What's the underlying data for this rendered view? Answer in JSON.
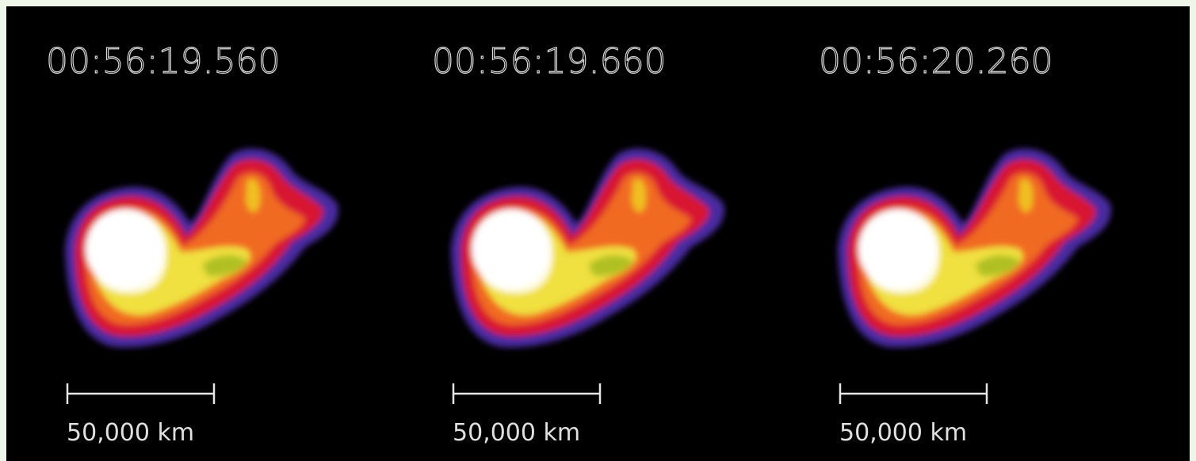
{
  "panels": [
    {
      "time": "00:56:19.560",
      "scale": "50,000 km"
    },
    {
      "time": "00:56:19.660",
      "scale": "50,000 km"
    },
    {
      "time": "00:56:20.260",
      "scale": "50,000 km"
    }
  ]
}
